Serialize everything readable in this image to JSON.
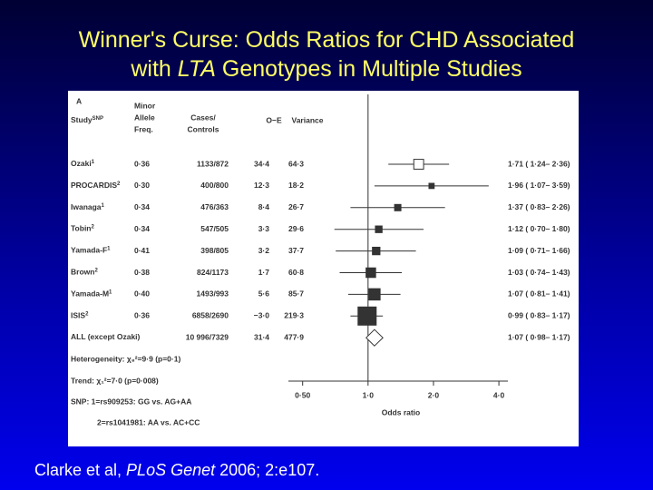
{
  "title_lines": [
    [
      "Winner's Curse: Odds Ratios for CHD Associated"
    ],
    [
      "with ",
      "LTA",
      " Genotypes in Multiple Studies"
    ]
  ],
  "citation": [
    "Clarke et al, ",
    "PLoS Genet",
    " 2006; 2:e107."
  ],
  "chart_data": {
    "type": "forest",
    "panel_label": "A",
    "headers": {
      "study": "Study",
      "study_sup": "SNP",
      "freq": [
        "Minor",
        "Allele",
        "Freq."
      ],
      "cases": [
        "Cases/",
        "Controls"
      ],
      "oe": "O−E",
      "variance": "Variance"
    },
    "studies": [
      "Ozaki",
      "PROCARDIS",
      "Iwanaga",
      "Tobin",
      "Yamada-F",
      "Brown",
      "Yamada-M",
      "ISIS",
      "ALL (except Ozaki)"
    ],
    "refs": [
      "1",
      "2",
      "1",
      "2",
      "1",
      "2",
      "1",
      "2",
      null
    ],
    "freq": [
      "0·36",
      "0·30",
      "0·34",
      "0·34",
      "0·41",
      "0·38",
      "0·40",
      "0·36",
      null
    ],
    "cases": [
      "1133/872",
      "400/800",
      "476/363",
      "547/505",
      "398/805",
      "824/1173",
      "1493/993",
      "6858/2690",
      "10 996/7329"
    ],
    "oe": [
      "34·4",
      "12·3",
      "8·4",
      "3·3",
      "3·2",
      "1·7",
      "5·6",
      "−3·0",
      "31·4"
    ],
    "variance": {
      "values": [
        64.3,
        18.2,
        26.7,
        29.6,
        37.7,
        60.8,
        85.7,
        219.3,
        477.9
      ],
      "value_labels": [
        "64·3",
        "18·2",
        "26·7",
        "29·6",
        "37·7",
        "60·8",
        "85·7",
        "219·3",
        "477·9"
      ]
    },
    "values": [
      1.71,
      1.96,
      1.37,
      1.12,
      1.09,
      1.03,
      1.07,
      0.99,
      1.07
    ],
    "ci_low": [
      1.24,
      1.07,
      0.83,
      0.7,
      0.71,
      0.74,
      0.81,
      0.83,
      0.98
    ],
    "ci_high": [
      2.36,
      3.59,
      2.26,
      1.8,
      1.66,
      1.43,
      1.41,
      1.17,
      1.17
    ],
    "value_labels": [
      "1·71 ( 1·24– 2·36)",
      "1·96 ( 1·07– 3·59)",
      "1·37 ( 0·83– 2·26)",
      "1·12 ( 0·70– 1·80)",
      "1·09 ( 0·71– 1·66)",
      "1·03 ( 0·74– 1·43)",
      "1·07 ( 0·81– 1·41)",
      "0·99 ( 0·83– 1·17)",
      "1·07 ( 0·98– 1·17)"
    ],
    "markers": [
      "open-square",
      "square",
      "square",
      "square",
      "square",
      "square",
      "square",
      "square",
      "diamond"
    ],
    "color": "#333333",
    "log_x": true,
    "ref_line": 1,
    "xlim": [
      0.43,
      4.4
    ],
    "xticks": [
      {
        "value": 0.5,
        "label": "0·50"
      },
      {
        "value": 1,
        "label": "1·0"
      },
      {
        "value": 2,
        "label": "2·0"
      },
      {
        "value": 4,
        "label": "4·0"
      }
    ],
    "xlabel": "Odds ratio",
    "notes": [
      "Heterogeneity: χ₈²=9·9 (p=0·1)",
      "Trend: χ₁²=7·0 (p=0·008)",
      "SNP:  1=rs909253: GG vs. AG+AA",
      "2=rs1041981: AA vs. AC+CC"
    ]
  }
}
